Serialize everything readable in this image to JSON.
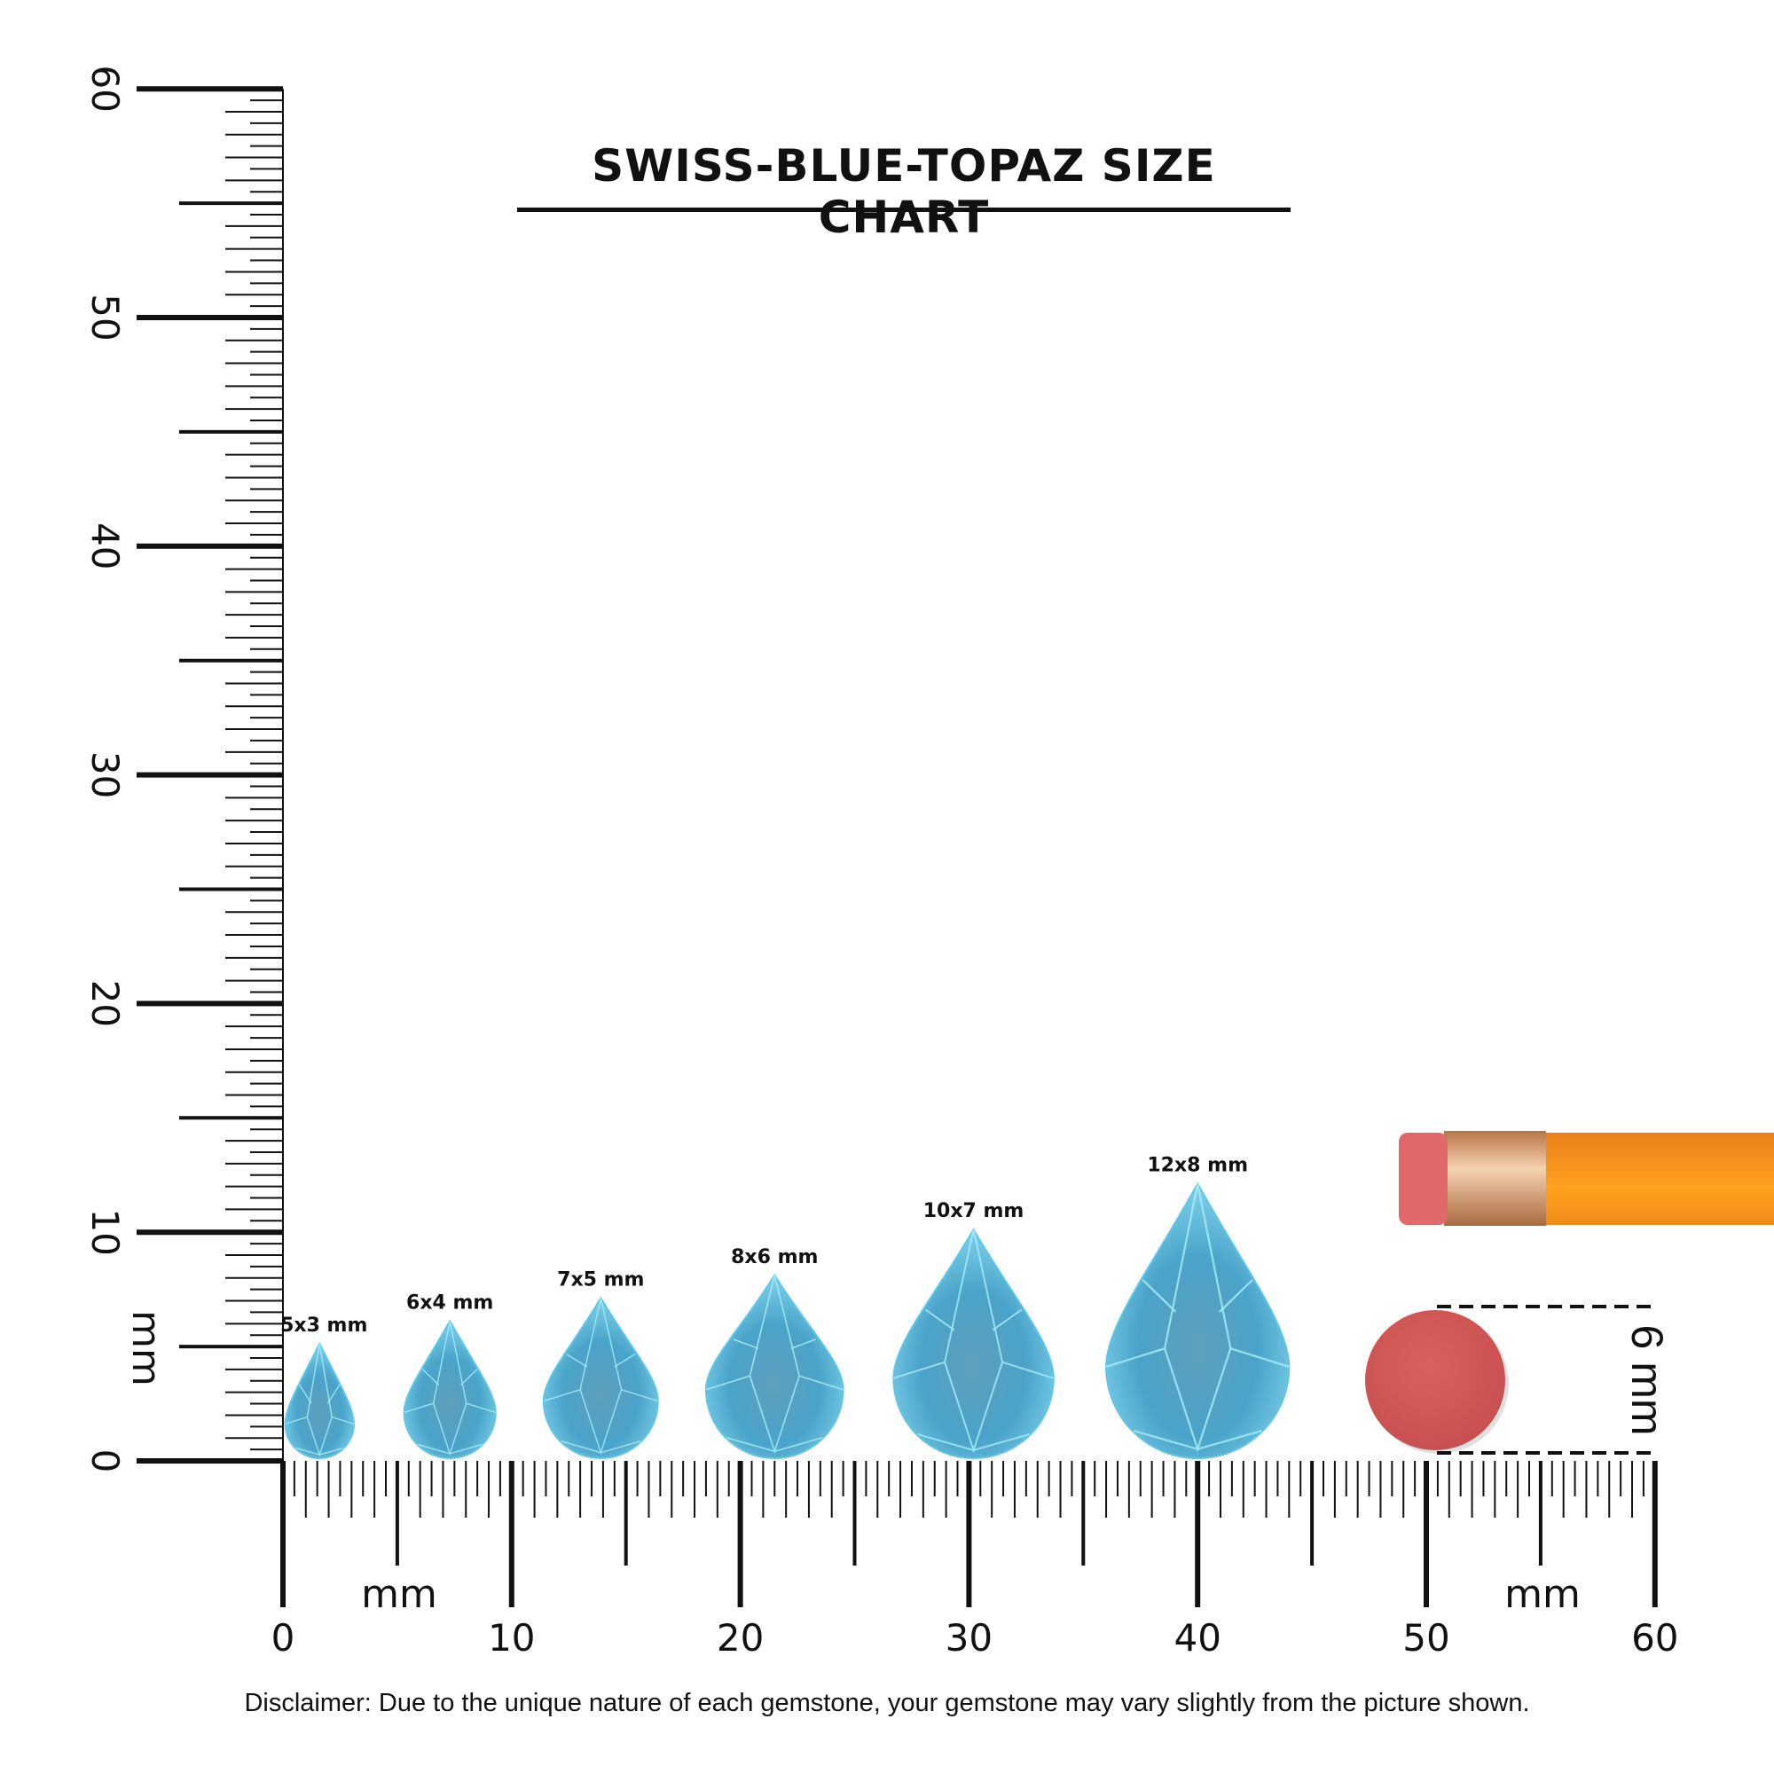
{
  "title": "SWISS-BLUE-TOPAZ SIZE CHART",
  "ruler": {
    "unit_label": "mm",
    "x_ticks": [
      "0",
      "10",
      "20",
      "30",
      "40",
      "50",
      "60"
    ],
    "y_ticks": [
      "0",
      "10",
      "20",
      "30",
      "40",
      "50",
      "60"
    ],
    "range_mm": [
      0,
      60
    ]
  },
  "gems": [
    {
      "label": "5x3 mm",
      "length_mm": 5,
      "width_mm": 3,
      "center_mm": 1.6
    },
    {
      "label": "6x4 mm",
      "length_mm": 6,
      "width_mm": 4,
      "center_mm": 7.3
    },
    {
      "label": "7x5 mm",
      "length_mm": 7,
      "width_mm": 5,
      "center_mm": 13.9
    },
    {
      "label": "8x6 mm",
      "length_mm": 8,
      "width_mm": 6,
      "center_mm": 21.5
    },
    {
      "label": "10x7 mm",
      "length_mm": 10,
      "width_mm": 7,
      "center_mm": 30.2
    },
    {
      "label": "12x8 mm",
      "length_mm": 12,
      "width_mm": 8,
      "center_mm": 40.0
    }
  ],
  "reference": {
    "label": "6 mm",
    "object": "pencil eraser"
  },
  "colors": {
    "gem_light": "#7fd3ea",
    "gem_dark": "#3a8db3",
    "eraser": "#d45a5a",
    "pencil": "#f39a1e"
  },
  "disclaimer": "Disclaimer: Due to the unique nature of each gemstone, your gemstone may vary slightly from the picture shown."
}
